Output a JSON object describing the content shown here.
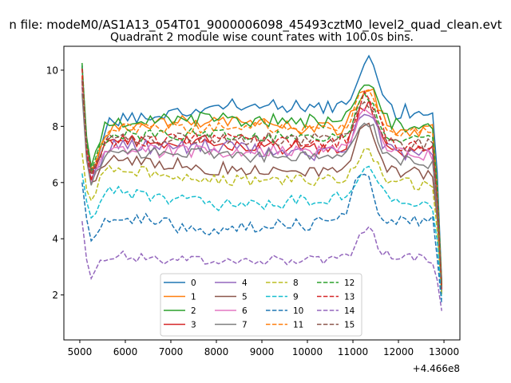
{
  "suptitle": "n file: modeM0/AS1A13_054T01_9000006098_45493cztM0_level2_quad_clean.evt",
  "chart_data": {
    "type": "line",
    "title": "Quadrant 2 module wise count rates with 100.0s bins.",
    "xlabel": "",
    "ylabel": "",
    "x_offset_label": "+4.466e8",
    "x_ticks": [
      "5000",
      "6000",
      "7000",
      "8000",
      "9000",
      "10000",
      "11000",
      "12000",
      "13000"
    ],
    "y_ticks": [
      "2",
      "4",
      "6",
      "8",
      "10"
    ],
    "xlim": [
      4650,
      13350
    ],
    "ylim": [
      0.4,
      10.85
    ],
    "grid": false,
    "legend_position": "lower center",
    "x_start": 5050,
    "x_end": 12950,
    "x_step": 100,
    "series": [
      {
        "name": "0",
        "color": "#1f77b4",
        "dash": "solid",
        "levels": [
          9.9,
          6.0,
          8.2,
          8.7,
          8.7,
          8.4
        ],
        "noise": 0.25,
        "seed": 11,
        "bump_at": 11300,
        "bump_amp": 1.9,
        "bump_width": 300
      },
      {
        "name": "1",
        "color": "#ff7f0e",
        "dash": "solid",
        "levels": [
          9.7,
          6.2,
          8.0,
          8.2,
          7.9,
          7.8
        ],
        "noise": 0.25,
        "seed": 12,
        "bump_at": 11300,
        "bump_amp": 1.6,
        "bump_width": 320
      },
      {
        "name": "2",
        "color": "#2ca02c",
        "dash": "solid",
        "levels": [
          9.9,
          6.3,
          8.2,
          8.3,
          8.1,
          8.0
        ],
        "noise": 0.25,
        "seed": 13,
        "bump_at": 11300,
        "bump_amp": 1.5,
        "bump_width": 320
      },
      {
        "name": "3",
        "color": "#d62728",
        "dash": "solid",
        "levels": [
          9.8,
          6.2,
          7.6,
          7.4,
          7.2,
          7.1
        ],
        "noise": 0.25,
        "seed": 14,
        "bump_at": 11300,
        "bump_amp": 1.6,
        "bump_width": 320
      },
      {
        "name": "4",
        "color": "#9467bd",
        "dash": "solid",
        "levels": [
          9.6,
          6.0,
          7.3,
          7.3,
          7.0,
          7.0
        ],
        "noise": 0.25,
        "seed": 15,
        "bump_at": 11300,
        "bump_amp": 1.6,
        "bump_width": 320
      },
      {
        "name": "5",
        "color": "#8c564b",
        "dash": "solid",
        "levels": [
          9.5,
          5.8,
          6.9,
          6.5,
          6.4,
          6.3
        ],
        "noise": 0.22,
        "seed": 16,
        "bump_at": 11300,
        "bump_amp": 1.7,
        "bump_width": 320
      },
      {
        "name": "6",
        "color": "#e377c2",
        "dash": "solid",
        "levels": [
          9.4,
          5.9,
          7.2,
          7.1,
          7.2,
          7.0
        ],
        "noise": 0.22,
        "seed": 17,
        "bump_at": 11300,
        "bump_amp": 1.4,
        "bump_width": 320
      },
      {
        "name": "7",
        "color": "#7f7f7f",
        "dash": "solid",
        "levels": [
          9.3,
          5.7,
          7.1,
          7.0,
          6.9,
          6.7
        ],
        "noise": 0.2,
        "seed": 18,
        "bump_at": 11300,
        "bump_amp": 1.3,
        "bump_width": 320
      },
      {
        "name": "8",
        "color": "#bcbd22",
        "dash": "dashed",
        "levels": [
          7.0,
          5.2,
          6.5,
          6.1,
          6.1,
          5.9
        ],
        "noise": 0.2,
        "seed": 19,
        "bump_at": 11300,
        "bump_amp": 1.0,
        "bump_width": 320
      },
      {
        "name": "9",
        "color": "#17becf",
        "dash": "dashed",
        "levels": [
          6.5,
          4.6,
          5.7,
          5.2,
          5.4,
          5.2
        ],
        "noise": 0.2,
        "seed": 20,
        "bump_at": 11300,
        "bump_amp": 1.1,
        "bump_width": 320
      },
      {
        "name": "10",
        "color": "#1f77b4",
        "dash": "dashed",
        "levels": [
          6.0,
          3.9,
          4.8,
          4.3,
          4.6,
          4.6
        ],
        "noise": 0.22,
        "seed": 21,
        "bump_at": 11200,
        "bump_amp": 1.9,
        "bump_width": 280
      },
      {
        "name": "11",
        "color": "#ff7f0e",
        "dash": "dashed",
        "levels": [
          9.6,
          6.2,
          7.9,
          8.0,
          7.9,
          7.8
        ],
        "noise": 0.22,
        "seed": 22,
        "bump_at": 11300,
        "bump_amp": 1.6,
        "bump_width": 320
      },
      {
        "name": "12",
        "color": "#2ca02c",
        "dash": "dashed",
        "levels": [
          10.3,
          6.3,
          7.7,
          7.7,
          7.6,
          7.6
        ],
        "noise": 0.22,
        "seed": 23,
        "bump_at": 11300,
        "bump_amp": 1.4,
        "bump_width": 320
      },
      {
        "name": "13",
        "color": "#d62728",
        "dash": "dashed",
        "levels": [
          9.9,
          6.0,
          7.5,
          7.5,
          7.4,
          7.2
        ],
        "noise": 0.22,
        "seed": 24,
        "bump_at": 11300,
        "bump_amp": 1.8,
        "bump_width": 320
      },
      {
        "name": "14",
        "color": "#9467bd",
        "dash": "dashed",
        "levels": [
          4.7,
          2.5,
          3.4,
          3.2,
          3.3,
          3.3
        ],
        "noise": 0.18,
        "seed": 25,
        "bump_at": 11300,
        "bump_amp": 1.0,
        "bump_width": 280
      },
      {
        "name": "15",
        "color": "#8c564b",
        "dash": "dashed",
        "levels": [
          9.5,
          6.2,
          7.5,
          7.6,
          7.5,
          7.3
        ],
        "noise": 0.22,
        "seed": 26,
        "bump_at": 11300,
        "bump_amp": 1.5,
        "bump_width": 320
      }
    ]
  }
}
